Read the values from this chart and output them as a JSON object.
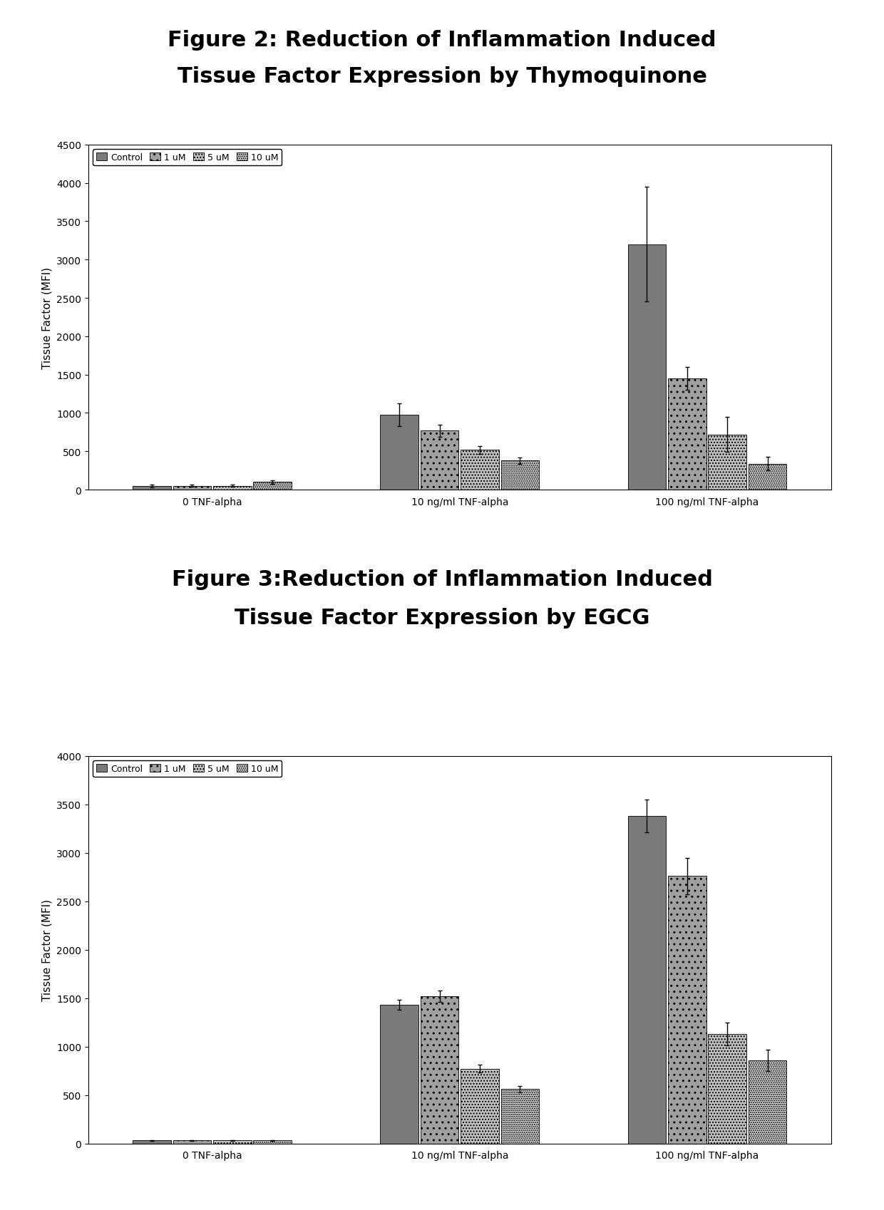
{
  "fig2_title_line1": "Figure 2: Reduction of Inflammation Induced",
  "fig2_title_line2": "Tissue Factor Expression by Thymoquinone",
  "fig3_title_line1": "Figure 3:Reduction of Inflammation Induced",
  "fig3_title_line2": "Tissue Factor Expression by EGCG",
  "ylabel": "Tissue Factor (MFI)",
  "x_labels": [
    "0 TNF-alpha",
    "10 ng/ml TNF-alpha",
    "100 ng/ml TNF-alpha"
  ],
  "legend_labels": [
    "Control",
    "1 uM",
    "5 uM",
    "10 uM"
  ],
  "bar_colors": [
    "#7a7a7a",
    "#a0a0a0",
    "#c0c0c0",
    "#d8d8d8"
  ],
  "fig2_data": {
    "values": [
      [
        50,
        50,
        50,
        100
      ],
      [
        980,
        770,
        520,
        380
      ],
      [
        3200,
        1450,
        720,
        340
      ]
    ],
    "errors": [
      [
        20,
        15,
        15,
        25
      ],
      [
        150,
        80,
        50,
        40
      ],
      [
        750,
        150,
        230,
        90
      ]
    ],
    "ylim": [
      0,
      4500
    ],
    "yticks": [
      0,
      500,
      1000,
      1500,
      2000,
      2500,
      3000,
      3500,
      4000,
      4500
    ]
  },
  "fig3_data": {
    "values": [
      [
        30,
        30,
        30,
        30
      ],
      [
        1430,
        1520,
        770,
        560
      ],
      [
        3380,
        2760,
        1130,
        860
      ]
    ],
    "errors": [
      [
        5,
        5,
        5,
        5
      ],
      [
        50,
        60,
        40,
        30
      ],
      [
        170,
        190,
        120,
        110
      ]
    ],
    "ylim": [
      0,
      4000
    ],
    "yticks": [
      0,
      500,
      1000,
      1500,
      2000,
      2500,
      3000,
      3500,
      4000
    ]
  },
  "background_color": "#ffffff",
  "title_fontsize": 22,
  "axis_fontsize": 11,
  "tick_fontsize": 10,
  "legend_fontsize": 9
}
